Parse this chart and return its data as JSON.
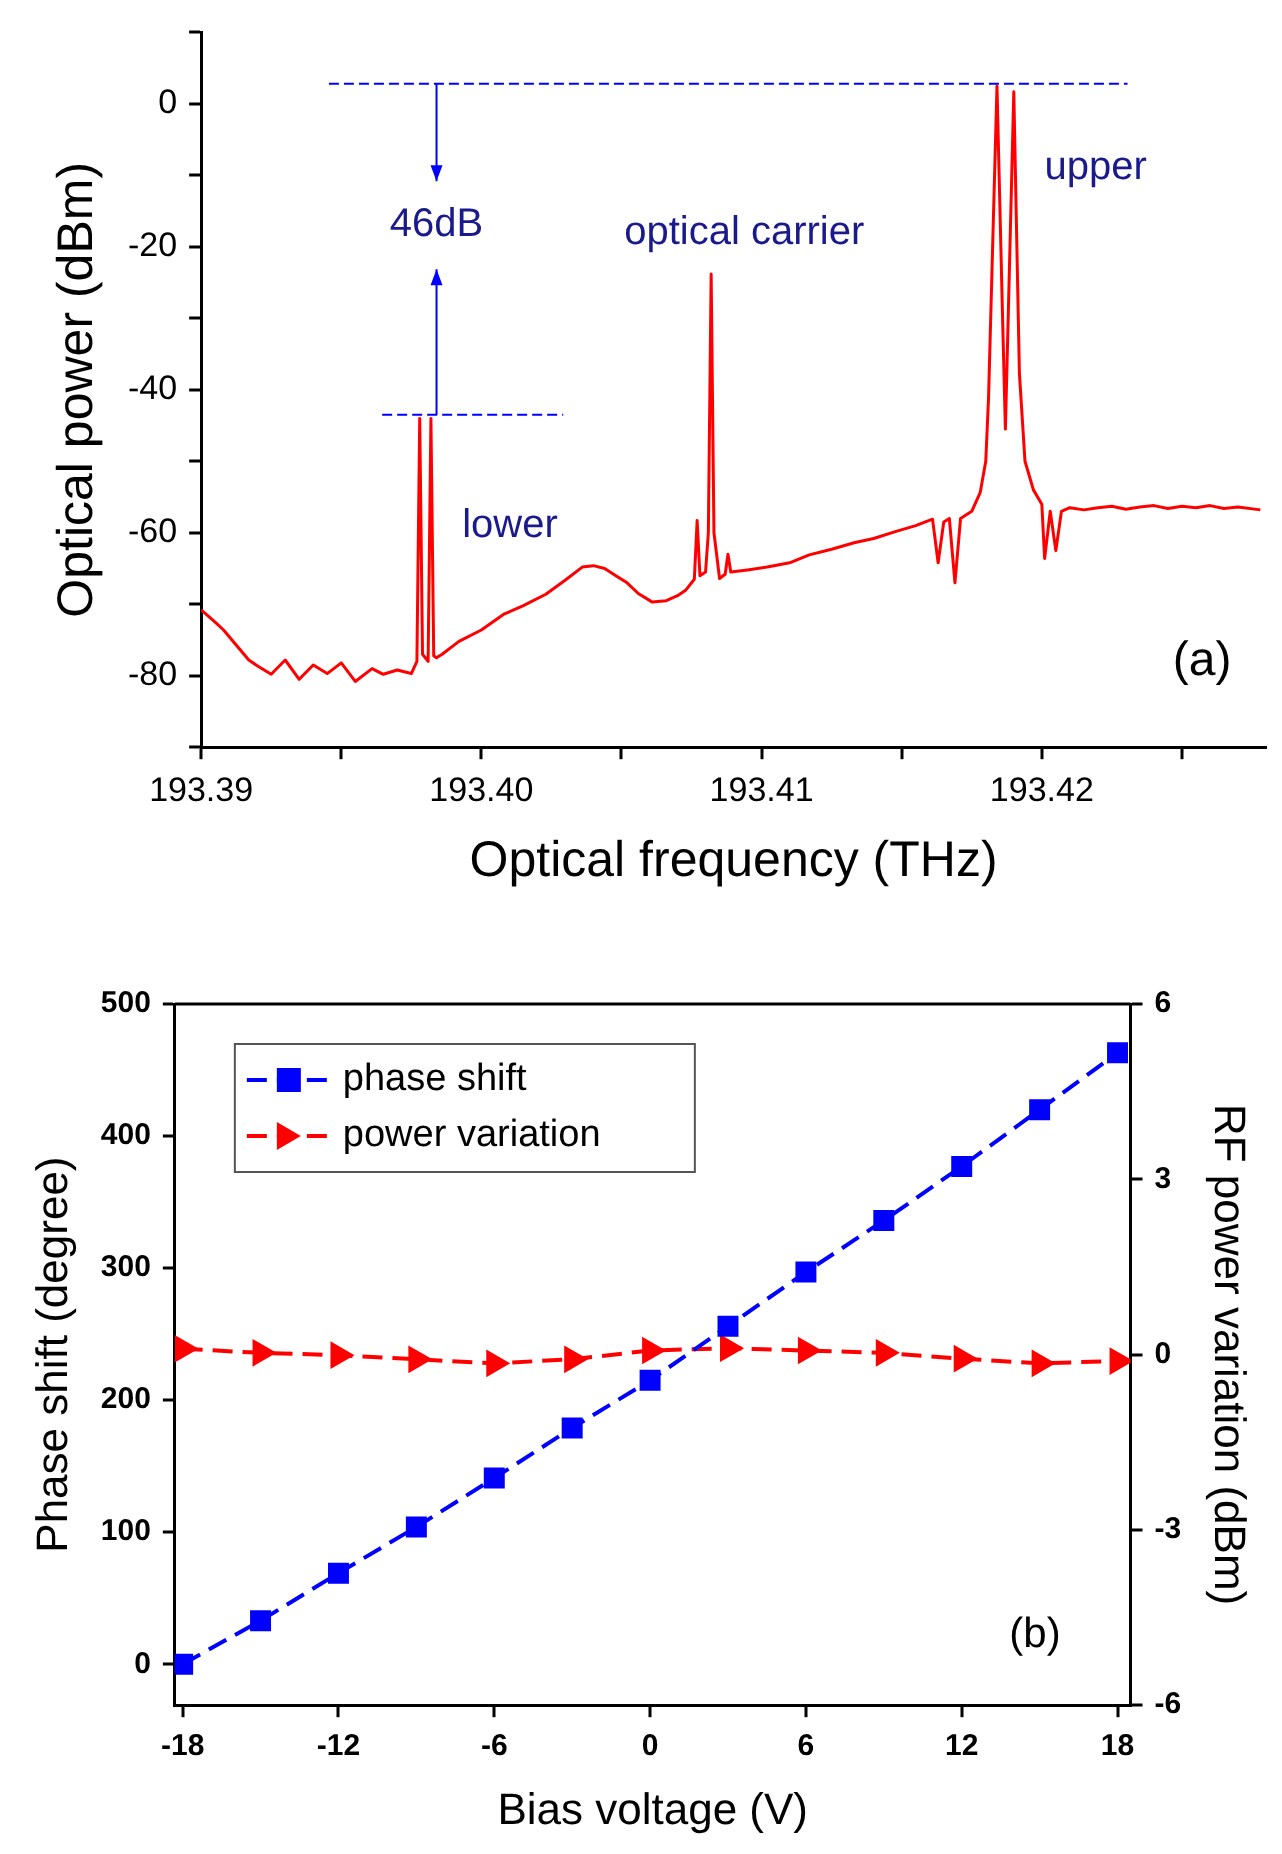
{
  "chart_data": [
    {
      "type": "line",
      "xlabel": "Optical frequency (THz)",
      "ylabel": "Optical power (dBm)",
      "x": [
        193.39,
        193.3905,
        193.3908,
        193.3911,
        193.3914,
        193.3917,
        193.392,
        193.3925,
        193.393,
        193.3935,
        193.394,
        193.3945,
        193.395,
        193.3955,
        193.3961,
        193.3965,
        193.397,
        193.3975,
        193.3977,
        193.3978,
        193.3979,
        193.3981,
        193.3982,
        193.3983,
        193.3984,
        193.3986,
        193.3992,
        193.4,
        193.4008,
        193.4015,
        193.4023,
        193.403,
        193.4036,
        193.404,
        193.4044,
        193.4048,
        193.4052,
        193.4056,
        193.4061,
        193.4066,
        193.407,
        193.4073,
        193.4076,
        193.4077,
        193.4078,
        193.408,
        193.4081,
        193.4082,
        193.4083,
        193.4085,
        193.4087,
        193.4088,
        193.4089,
        193.4095,
        193.4102,
        193.411,
        193.4117,
        193.4125,
        193.4133,
        193.414,
        193.4148,
        193.4155,
        193.4161,
        193.4163,
        193.4165,
        193.4167,
        193.4169,
        193.4171,
        193.4175,
        193.4178,
        193.418,
        193.4181,
        193.4184,
        193.4186,
        193.4187,
        193.4188,
        193.419,
        193.4192,
        193.4194,
        193.4197,
        193.42,
        193.4201,
        193.4203,
        193.4205,
        193.4207,
        193.421,
        193.4215,
        193.422,
        193.4225,
        193.423,
        193.4235,
        193.424,
        193.4245,
        193.425,
        193.4255,
        193.426,
        193.4265,
        193.427,
        193.4278
      ],
      "values": [
        -70.8,
        -72.5,
        -73.6,
        -75,
        -76.4,
        -77.8,
        -78.6,
        -79.8,
        -77.8,
        -80.5,
        -78.5,
        -79.7,
        -78.2,
        -80.8,
        -79,
        -79.8,
        -79.2,
        -79.7,
        -78,
        -44,
        -77,
        -78,
        -44,
        -77.2,
        -77.5,
        -77,
        -75.2,
        -73.6,
        -71.4,
        -70.2,
        -68.6,
        -66.6,
        -64.8,
        -64.6,
        -65,
        -66,
        -67,
        -68.5,
        -69.7,
        -69.5,
        -68.8,
        -68,
        -66.5,
        -58.3,
        -66,
        -65.5,
        -60,
        -23.8,
        -60,
        -66.4,
        -65.8,
        -63,
        -65.5,
        -65.2,
        -64.8,
        -64.2,
        -63.1,
        -62.3,
        -61.4,
        -60.8,
        -59.8,
        -59,
        -58.1,
        -64.2,
        -58.5,
        -58,
        -67,
        -58,
        -57,
        -54.4,
        -50,
        -41,
        2.5,
        -30,
        -45.5,
        -30,
        1.7,
        -37.7,
        -50,
        -54,
        -56,
        -63.6,
        -57,
        -62.5,
        -57,
        -56.5,
        -56.8,
        -56.5,
        -56.3,
        -56.7,
        -56.4,
        -56.2,
        -56.6,
        -56.3,
        -56.5,
        -56.2,
        -56.6,
        -56.4,
        -56.8
      ],
      "color": "#ff0000",
      "marker": "none",
      "line_style": "solid",
      "legend": false,
      "grid": false,
      "xlim": [
        193.39,
        193.428
      ],
      "ylim": [
        -90,
        10
      ],
      "xticks": [
        {
          "value": 193.39,
          "label": "193.39"
        },
        {
          "value": 193.395,
          "label": null
        },
        {
          "value": 193.4,
          "label": "193.40"
        },
        {
          "value": 193.405,
          "label": null
        },
        {
          "value": 193.41,
          "label": "193.41"
        },
        {
          "value": 193.415,
          "label": null
        },
        {
          "value": 193.42,
          "label": "193.42"
        },
        {
          "value": 193.425,
          "label": null
        }
      ],
      "yticks": [
        {
          "value": -90,
          "label": null
        },
        -80,
        {
          "value": -70,
          "label": null
        },
        -60,
        {
          "value": -50,
          "label": null
        },
        -40,
        {
          "value": -30,
          "label": null
        },
        -20,
        {
          "value": -10,
          "label": null
        },
        0,
        {
          "value": 10,
          "label": null
        }
      ],
      "ref_lines": [
        {
          "axis": "y",
          "value": 2.8,
          "color": "#0000ff",
          "line_style": "dashed"
        },
        {
          "axis": "y",
          "value": -43.5,
          "color": "#0000ff",
          "line_style": "dashed"
        }
      ],
      "annotations": [
        {
          "text": "46dB",
          "x": 193.3984,
          "y": 2.8
        },
        "optical carrier",
        "upper",
        "lower",
        "(a)"
      ]
    },
    {
      "type": "line",
      "xlabel": "Bias voltage (V)",
      "ylabel": "Phase shift (degree)",
      "y2label": "RF power variation (dBm)",
      "x": [
        -18,
        -15,
        -12,
        -9,
        -6,
        -3,
        0,
        3,
        6,
        9,
        12,
        15,
        18
      ],
      "series": [
        {
          "name": "phase shift",
          "color": "#0000ff",
          "marker": "square",
          "values": [
            0,
            33,
            69,
            104,
            141,
            179,
            215,
            256,
            297,
            336,
            377,
            420,
            463
          ]
        },
        {
          "name": "power variation",
          "color": "#ff0000",
          "marker": "triangle",
          "axis": "y2",
          "values": [
            0.1,
            0.03,
            -0.01,
            -0.08,
            -0.15,
            -0.08,
            0.07,
            0.11,
            0.07,
            0.03,
            -0.07,
            -0.15,
            -0.11
          ]
        }
      ],
      "line_style": "dashed",
      "legend": "top left",
      "grid": false,
      "xlim": [
        -18.3,
        18.5
      ],
      "ylim": [
        -31,
        500
      ],
      "y2lim": [
        -6,
        6
      ],
      "xticks": [
        -18,
        -12,
        -6,
        0,
        6,
        12,
        18
      ],
      "yticks": [
        0,
        100,
        200,
        300,
        400,
        500
      ],
      "y2ticks": [
        -6,
        -3,
        0,
        3,
        6
      ],
      "annotations": [
        "(b)"
      ]
    }
  ]
}
